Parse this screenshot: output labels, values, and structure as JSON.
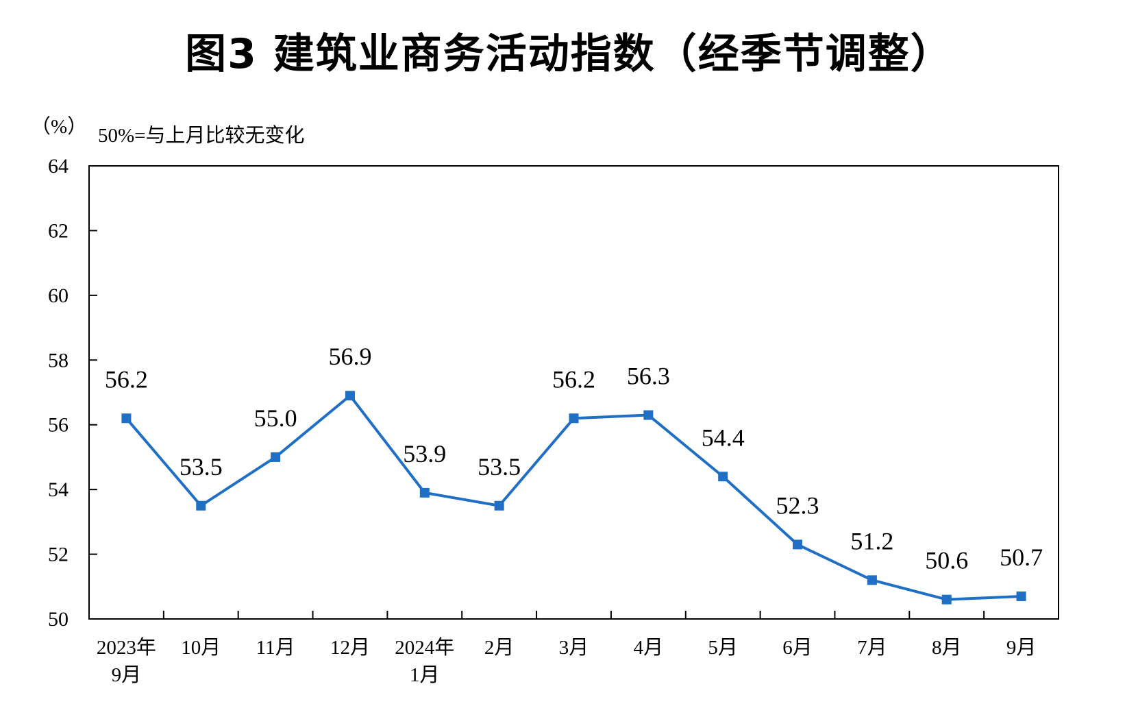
{
  "chart_data": {
    "type": "line",
    "title": "图3  建筑业商务活动指数（经季节调整）",
    "ylabel": "（%）",
    "annotation": "50%=与上月比较无变化",
    "ylim": [
      50,
      64
    ],
    "yticks": [
      "50",
      "52",
      "54",
      "56",
      "58",
      "60",
      "62",
      "64"
    ],
    "categories": [
      [
        "2023年",
        "9月"
      ],
      [
        "10月"
      ],
      [
        "11月"
      ],
      [
        "12月"
      ],
      [
        "2024年",
        "1月"
      ],
      [
        "2月"
      ],
      [
        "3月"
      ],
      [
        "4月"
      ],
      [
        "5月"
      ],
      [
        "6月"
      ],
      [
        "7月"
      ],
      [
        "8月"
      ],
      [
        "9月"
      ]
    ],
    "series": [
      {
        "values": [
          56.2,
          53.5,
          55.0,
          56.9,
          53.9,
          53.5,
          56.2,
          56.3,
          54.4,
          52.3,
          51.2,
          50.6,
          50.7
        ],
        "labels": [
          "56.2",
          "53.5",
          "55.0",
          "56.9",
          "53.9",
          "53.5",
          "56.2",
          "56.3",
          "54.4",
          "52.3",
          "51.2",
          "50.6",
          "50.7"
        ],
        "color": "#1F6FC4"
      }
    ],
    "grid": false,
    "legend": "none"
  }
}
